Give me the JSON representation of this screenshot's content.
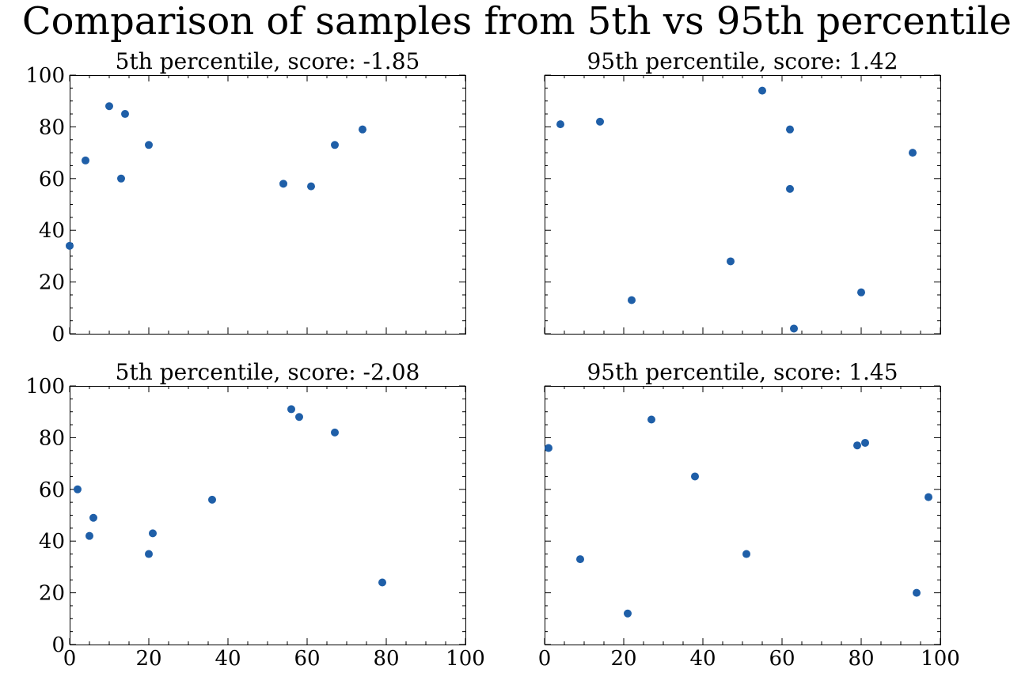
{
  "figure": {
    "suptitle": "Comparison of samples from 5th vs 95th percentile",
    "marker_color": "#1f5fa8"
  },
  "chart_data": [
    {
      "type": "scatter",
      "title": "5th percentile, score: -1.85",
      "xlim": [
        0,
        100
      ],
      "ylim": [
        0,
        100
      ],
      "xticks": [
        "0",
        "20",
        "40",
        "60",
        "80",
        "100"
      ],
      "yticks": [
        "0",
        "20",
        "40",
        "60",
        "80",
        "100"
      ],
      "show_xticklabels": false,
      "show_yticklabels": true,
      "points": [
        {
          "x": 0,
          "y": 34
        },
        {
          "x": 4,
          "y": 67
        },
        {
          "x": 10,
          "y": 88
        },
        {
          "x": 13,
          "y": 60
        },
        {
          "x": 14,
          "y": 85
        },
        {
          "x": 20,
          "y": 73
        },
        {
          "x": 54,
          "y": 58
        },
        {
          "x": 61,
          "y": 57
        },
        {
          "x": 67,
          "y": 73
        },
        {
          "x": 74,
          "y": 79
        }
      ]
    },
    {
      "type": "scatter",
      "title": "95th percentile, score: 1.42",
      "xlim": [
        0,
        100
      ],
      "ylim": [
        0,
        100
      ],
      "xticks": [
        "0",
        "20",
        "40",
        "60",
        "80",
        "100"
      ],
      "yticks": [
        "0",
        "20",
        "40",
        "60",
        "80",
        "100"
      ],
      "show_xticklabels": false,
      "show_yticklabels": false,
      "points": [
        {
          "x": 4,
          "y": 81
        },
        {
          "x": 14,
          "y": 82
        },
        {
          "x": 22,
          "y": 13
        },
        {
          "x": 47,
          "y": 28
        },
        {
          "x": 55,
          "y": 94
        },
        {
          "x": 62,
          "y": 79
        },
        {
          "x": 62,
          "y": 56
        },
        {
          "x": 63,
          "y": 2
        },
        {
          "x": 80,
          "y": 16
        },
        {
          "x": 93,
          "y": 70
        }
      ]
    },
    {
      "type": "scatter",
      "title": "5th percentile, score: -2.08",
      "xlim": [
        0,
        100
      ],
      "ylim": [
        0,
        100
      ],
      "xticks": [
        "0",
        "20",
        "40",
        "60",
        "80",
        "100"
      ],
      "yticks": [
        "0",
        "20",
        "40",
        "60",
        "80",
        "100"
      ],
      "show_xticklabels": true,
      "show_yticklabels": true,
      "points": [
        {
          "x": 2,
          "y": 60
        },
        {
          "x": 5,
          "y": 42
        },
        {
          "x": 6,
          "y": 49
        },
        {
          "x": 20,
          "y": 35
        },
        {
          "x": 21,
          "y": 43
        },
        {
          "x": 36,
          "y": 56
        },
        {
          "x": 56,
          "y": 91
        },
        {
          "x": 58,
          "y": 88
        },
        {
          "x": 67,
          "y": 82
        },
        {
          "x": 79,
          "y": 24
        }
      ]
    },
    {
      "type": "scatter",
      "title": "95th percentile, score: 1.45",
      "xlim": [
        0,
        100
      ],
      "ylim": [
        0,
        100
      ],
      "xticks": [
        "0",
        "20",
        "40",
        "60",
        "80",
        "100"
      ],
      "yticks": [
        "0",
        "20",
        "40",
        "60",
        "80",
        "100"
      ],
      "show_xticklabels": true,
      "show_yticklabels": false,
      "points": [
        {
          "x": 1,
          "y": 76
        },
        {
          "x": 9,
          "y": 33
        },
        {
          "x": 21,
          "y": 12
        },
        {
          "x": 27,
          "y": 87
        },
        {
          "x": 38,
          "y": 65
        },
        {
          "x": 51,
          "y": 35
        },
        {
          "x": 79,
          "y": 77
        },
        {
          "x": 81,
          "y": 78
        },
        {
          "x": 94,
          "y": 20
        },
        {
          "x": 97,
          "y": 57
        }
      ]
    }
  ]
}
